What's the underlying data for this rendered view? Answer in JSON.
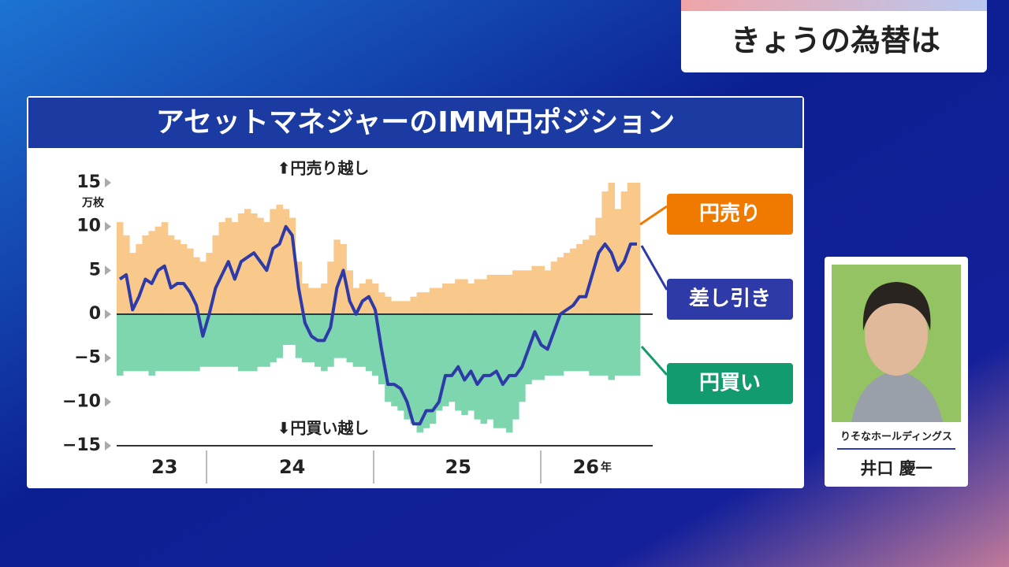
{
  "header": {
    "title": "きょうの為替は"
  },
  "chart_data": {
    "type": "combo",
    "title": "アセットマネジャーのIMM円ポジション",
    "y_unit": "万枚",
    "annotations": {
      "top": "⬆円売り越し",
      "bottom": "⬇円買い越し"
    },
    "categories": [
      null,
      null,
      null,
      null,
      null,
      null,
      null,
      "23",
      null,
      null,
      null,
      null,
      null,
      null,
      null,
      null,
      null,
      null,
      null,
      null,
      null,
      null,
      null,
      null,
      null,
      null,
      null,
      "24",
      null,
      null,
      null,
      null,
      null,
      null,
      null,
      null,
      null,
      null,
      null,
      null,
      null,
      null,
      null,
      null,
      null,
      null,
      null,
      null,
      null,
      null,
      null,
      null,
      null,
      "25",
      null,
      null,
      null,
      null,
      null,
      null,
      null,
      null,
      null,
      null,
      null,
      null,
      null,
      null,
      null,
      null,
      null,
      null,
      null,
      null,
      "26",
      null,
      null,
      null,
      null,
      null,
      null,
      null
    ],
    "x_unit": "年",
    "ylim": [
      -15,
      15
    ],
    "yticks": [
      {
        "value": -15,
        "label": "−15"
      },
      {
        "value": -10,
        "label": "−10"
      },
      {
        "value": -5,
        "label": "−5"
      },
      0,
      5,
      10,
      15
    ],
    "series": [
      {
        "name": "円売り",
        "type": "bar",
        "color": "#f8c98a",
        "legend_color": "#f07a00",
        "values": [
          10.5,
          9,
          7,
          8,
          9,
          9.5,
          10,
          10.5,
          9,
          8.5,
          8,
          7.5,
          6.5,
          6,
          7,
          9,
          10.5,
          11,
          10.5,
          11.5,
          12,
          11.5,
          11,
          10.5,
          12,
          12.5,
          12,
          11,
          6,
          3.5,
          3,
          3,
          3.5,
          6,
          8.5,
          8,
          5,
          3,
          3.5,
          4,
          3.5,
          2.5,
          2,
          1.5,
          1.5,
          1.5,
          2,
          2.5,
          2.5,
          3,
          3,
          3.5,
          3.5,
          4,
          4,
          3.5,
          4,
          4,
          4.5,
          4.5,
          4.5,
          4.5,
          5,
          5,
          5,
          5.5,
          5.5,
          5,
          6,
          6.5,
          7,
          7.5,
          8,
          8.5,
          9,
          11,
          14,
          15,
          12,
          14,
          15,
          15
        ]
      },
      {
        "name": "円買い",
        "type": "bar",
        "color": "#7ed6af",
        "legend_color": "#129b6e",
        "values": [
          -7,
          -6.5,
          -6.5,
          -6.5,
          -6.5,
          -7,
          -6.5,
          -6.5,
          -6.5,
          -6.5,
          -6.5,
          -6.5,
          -6.5,
          -6,
          -6,
          -6,
          -6,
          -6,
          -6,
          -6.5,
          -6.5,
          -6.5,
          -6,
          -6,
          -5.5,
          -5,
          -3.5,
          -3.5,
          -5,
          -5.5,
          -5.5,
          -6,
          -6.5,
          -6,
          -5,
          -5,
          -5.5,
          -6,
          -6,
          -6.5,
          -7,
          -8,
          -10,
          -10.5,
          -11,
          -12,
          -12.5,
          -13.5,
          -13,
          -12.5,
          -11,
          -10.5,
          -10,
          -11,
          -11.5,
          -11,
          -12,
          -12.5,
          -12,
          -13,
          -13,
          -13.5,
          -12,
          -10,
          -8,
          -7.5,
          -7.5,
          -7,
          -7,
          -7,
          -6.5,
          -6.5,
          -6.5,
          -6.5,
          -7,
          -7,
          -7,
          -7.5,
          -7,
          -7,
          -7,
          -7
        ]
      },
      {
        "name": "差し引き",
        "type": "line",
        "color": "#2e3aa8",
        "legend_color": "#2e3aa8",
        "values": [
          4,
          4.5,
          0.5,
          2,
          4,
          3.5,
          5,
          5.5,
          3,
          3.5,
          3.5,
          2.5,
          1,
          -2.5,
          0,
          3,
          4.5,
          6,
          4,
          6,
          6.5,
          7,
          6,
          5,
          7.5,
          8,
          10,
          9,
          3,
          -1,
          -2.5,
          -3,
          -3,
          -1.5,
          3,
          5,
          1.5,
          0,
          1.5,
          2,
          0.5,
          -4,
          -8,
          -8,
          -8.5,
          -10,
          -12.5,
          -12.5,
          -11,
          -11,
          -10,
          -7,
          -7,
          -6,
          -7.5,
          -6.5,
          -8,
          -7,
          -7,
          -6.5,
          -8,
          -7,
          -7,
          -6,
          -4,
          -2,
          -3.5,
          -4,
          -2,
          0,
          0.5,
          1,
          2,
          2,
          4.5,
          7,
          8,
          7,
          5,
          6,
          8,
          8
        ]
      }
    ]
  },
  "guest": {
    "company": "りそなホールディングス",
    "name": "井口 慶一"
  }
}
